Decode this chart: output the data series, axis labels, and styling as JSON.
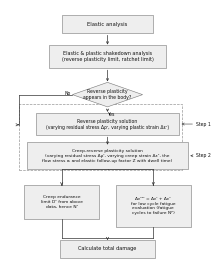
{
  "title": "Elastic analysis",
  "box1_text": "Elastic & plastic shakedown analysis\n(reverse plasticity limit, ratchet limit)",
  "diamond_text": "Reverse plasticity\nappears in the body?",
  "no_label": "No",
  "yes_label": "Yes",
  "box2_text": "Reverse plasticity solution\n(varying residual stress Δρʳ, varying plastic strain Δεʳ)",
  "box3_text": "Creep-reverse plasticity solution\n(varying residual stress Δρʳ, varying creep strain Δεᶜ, the\nflow stress σᵢ and elastic follow-up factor Z with dwell time)",
  "box4a_text": "Creep endurance\nlimit Dᶜ from above\ndata, hence Nᶜ",
  "box4b_text": "Δεᵗᵒᵗ = Δεʳ + Δεᶜ\nfor low cycle fatigue\nevaluation (fatigue\ncycles to failure Nᵖ)",
  "box5_text": "Calculate total damage",
  "step1_label": "Step 1",
  "step2_label": "Step 2",
  "bg_color": "#ffffff",
  "box_facecolor": "#eeeeee",
  "box_edgecolor": "#777777",
  "dashed_box_color": "#999999",
  "arrow_color": "#333333",
  "text_color": "#111111",
  "font_size": 3.8
}
